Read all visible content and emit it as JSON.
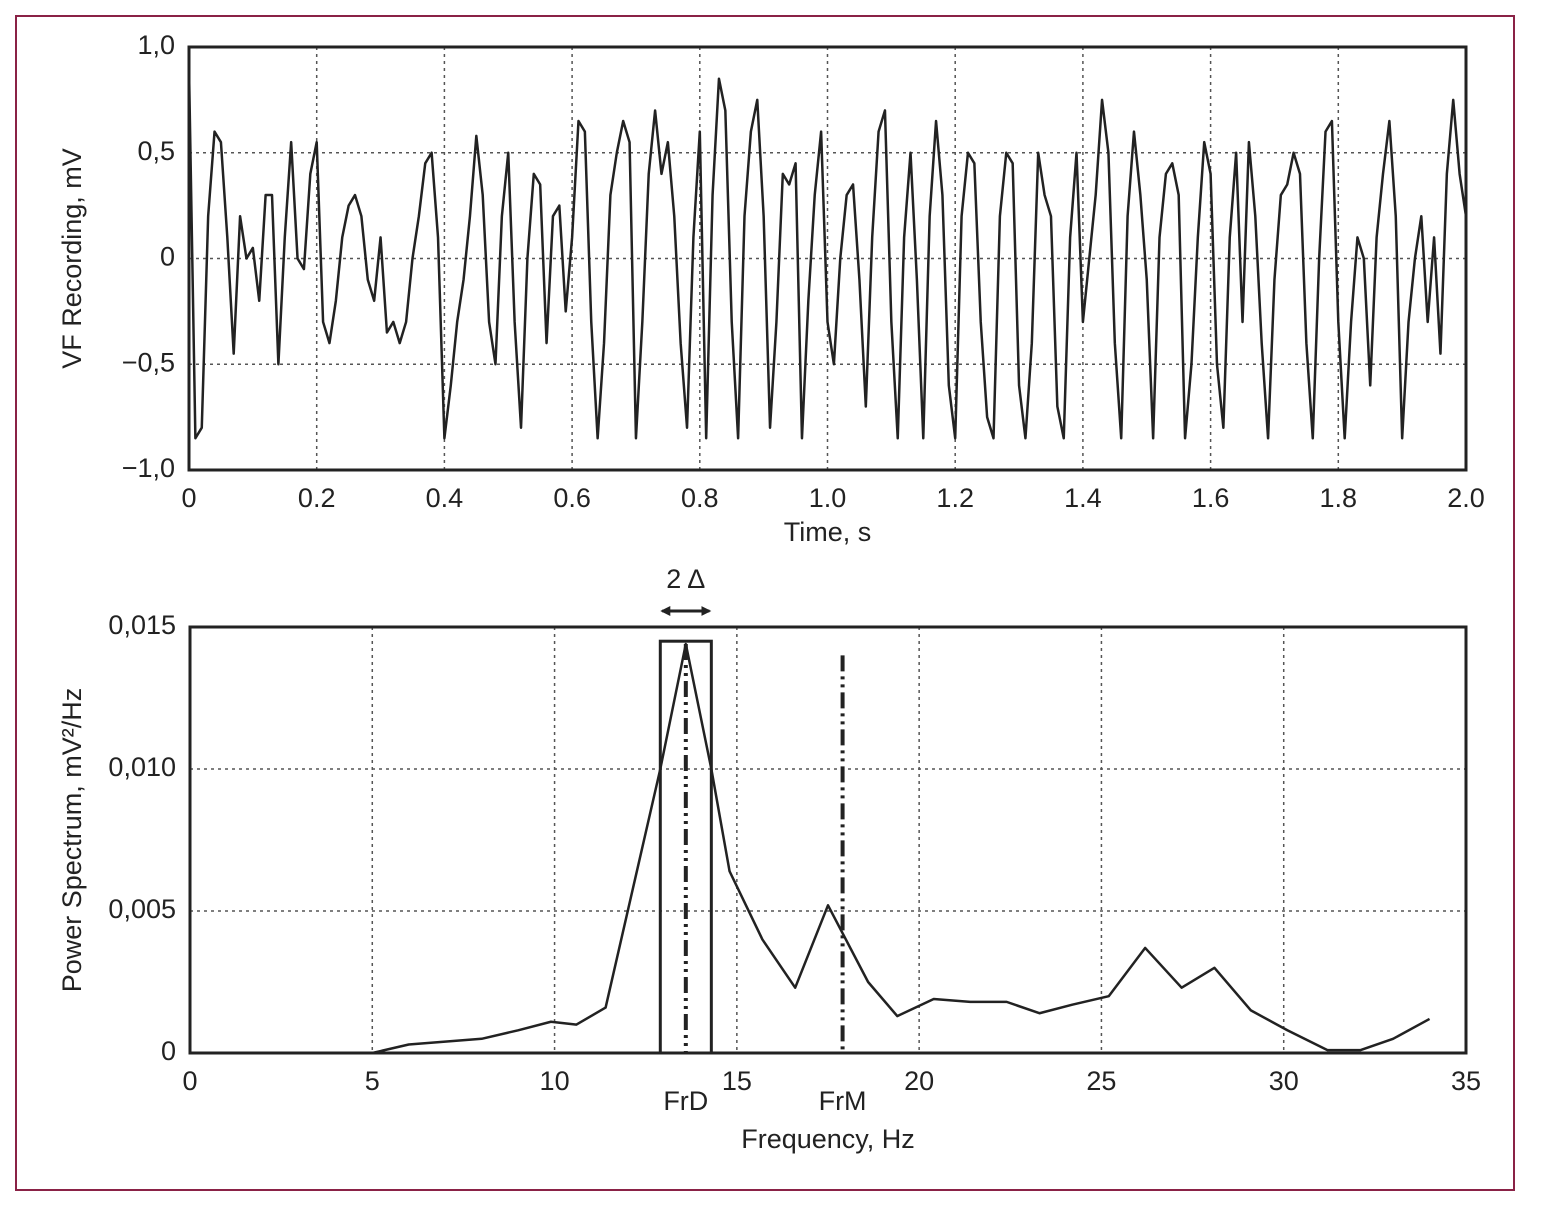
{
  "chart_data": [
    {
      "type": "line",
      "ylabel": "VF Recording, mV",
      "xlabel": "Time, s",
      "color": "#222222",
      "grid": true,
      "xlim": [
        0,
        2
      ],
      "ylim": [
        -1,
        1
      ],
      "xticks": [
        0,
        0.2,
        0.4,
        0.6,
        0.8,
        {
          "value": 1,
          "label": "1.0"
        },
        1.2,
        1.4,
        1.6,
        1.8,
        {
          "value": 2,
          "label": "2.0"
        }
      ],
      "yticks": [
        {
          "value": -1,
          "label": "−1,0"
        },
        {
          "value": -0.5,
          "label": "−0,5"
        },
        0,
        {
          "value": 0.5,
          "label": "0,5"
        },
        {
          "value": 1,
          "label": "1,0"
        }
      ],
      "x": [
        0,
        0.01,
        0.02,
        0.03,
        0.04,
        0.05,
        0.06,
        0.07,
        0.08,
        0.09,
        0.1,
        0.11,
        0.12,
        0.13,
        0.14,
        0.15,
        0.16,
        0.17,
        0.18,
        0.19,
        0.2,
        0.21,
        0.22,
        0.23,
        0.24,
        0.25,
        0.26,
        0.27,
        0.28,
        0.29,
        0.3,
        0.31,
        0.32,
        0.33,
        0.34,
        0.35,
        0.36,
        0.37,
        0.38,
        0.39,
        0.4,
        0.41,
        0.42,
        0.43,
        0.44,
        0.45,
        0.46,
        0.47,
        0.48,
        0.49,
        0.5,
        0.51,
        0.52,
        0.53,
        0.54,
        0.55,
        0.56,
        0.57,
        0.58,
        0.59,
        0.6,
        0.61,
        0.62,
        0.63,
        0.64,
        0.65,
        0.66,
        0.67,
        0.68,
        0.69,
        0.7,
        0.71,
        0.72,
        0.73,
        0.74,
        0.75,
        0.76,
        0.77,
        0.78,
        0.79,
        0.8,
        0.81,
        0.82,
        0.83,
        0.84,
        0.85,
        0.86,
        0.87,
        0.88,
        0.89,
        0.9,
        0.91,
        0.92,
        0.93,
        0.94,
        0.95,
        0.96,
        0.97,
        0.98,
        0.99,
        1.0,
        1.01,
        1.02,
        1.03,
        1.04,
        1.05,
        1.06,
        1.07,
        1.08,
        1.09,
        1.1,
        1.11,
        1.12,
        1.13,
        1.14,
        1.15,
        1.16,
        1.17,
        1.18,
        1.19,
        1.2,
        1.21,
        1.22,
        1.23,
        1.24,
        1.25,
        1.26,
        1.27,
        1.28,
        1.29,
        1.3,
        1.31,
        1.32,
        1.33,
        1.34,
        1.35,
        1.36,
        1.37,
        1.38,
        1.39,
        1.4,
        1.41,
        1.42,
        1.43,
        1.44,
        1.45,
        1.46,
        1.47,
        1.48,
        1.49,
        1.5,
        1.51,
        1.52,
        1.53,
        1.54,
        1.55,
        1.56,
        1.57,
        1.58,
        1.59,
        1.6,
        1.61,
        1.62,
        1.63,
        1.64,
        1.65,
        1.66,
        1.67,
        1.68,
        1.69,
        1.7,
        1.71,
        1.72,
        1.73,
        1.74,
        1.75,
        1.76,
        1.77,
        1.78,
        1.79,
        1.8,
        1.81,
        1.82,
        1.83,
        1.84,
        1.85,
        1.86,
        1.87,
        1.88,
        1.89,
        1.9,
        1.91,
        1.92,
        1.93,
        1.94,
        1.95,
        1.96,
        1.97,
        1.98,
        1.99,
        2.0
      ],
      "values": [
        0.9,
        -0.85,
        -0.8,
        0.2,
        0.6,
        0.55,
        0.1,
        -0.45,
        0.2,
        0.0,
        0.05,
        -0.2,
        0.3,
        0.3,
        -0.5,
        0.1,
        0.55,
        0.0,
        -0.05,
        0.4,
        0.55,
        -0.3,
        -0.4,
        -0.2,
        0.1,
        0.25,
        0.3,
        0.2,
        -0.1,
        -0.2,
        0.1,
        -0.35,
        -0.3,
        -0.4,
        -0.3,
        0.0,
        0.2,
        0.45,
        0.5,
        0.1,
        -0.85,
        -0.6,
        -0.3,
        -0.1,
        0.2,
        0.58,
        0.3,
        -0.3,
        -0.5,
        0.2,
        0.5,
        -0.3,
        -0.8,
        0.0,
        0.4,
        0.35,
        -0.4,
        0.2,
        0.25,
        -0.25,
        0.1,
        0.65,
        0.6,
        -0.3,
        -0.85,
        -0.4,
        0.3,
        0.5,
        0.65,
        0.55,
        -0.85,
        -0.3,
        0.4,
        0.7,
        0.4,
        0.55,
        0.2,
        -0.4,
        -0.8,
        0.1,
        0.6,
        -0.85,
        0.3,
        0.85,
        0.7,
        -0.3,
        -0.85,
        0.2,
        0.6,
        0.75,
        0.2,
        -0.8,
        -0.3,
        0.4,
        0.35,
        0.45,
        -0.85,
        -0.2,
        0.3,
        0.6,
        -0.3,
        -0.5,
        0.0,
        0.3,
        0.35,
        -0.1,
        -0.7,
        0.1,
        0.6,
        0.7,
        -0.3,
        -0.85,
        0.1,
        0.5,
        -0.1,
        -0.85,
        0.2,
        0.65,
        0.3,
        -0.6,
        -0.85,
        0.2,
        0.5,
        0.45,
        -0.3,
        -0.75,
        -0.85,
        0.2,
        0.5,
        0.45,
        -0.6,
        -0.85,
        -0.4,
        0.5,
        0.3,
        0.2,
        -0.7,
        -0.85,
        0.1,
        0.5,
        -0.3,
        0.0,
        0.3,
        0.75,
        0.5,
        -0.4,
        -0.85,
        0.2,
        0.6,
        0.3,
        -0.1,
        -0.85,
        0.1,
        0.4,
        0.45,
        0.3,
        -0.85,
        -0.5,
        0.1,
        0.55,
        0.4,
        -0.5,
        -0.8,
        0.1,
        0.5,
        -0.3,
        0.55,
        0.2,
        -0.4,
        -0.85,
        -0.1,
        0.3,
        0.35,
        0.5,
        0.4,
        -0.4,
        -0.85,
        0.0,
        0.6,
        0.65,
        -0.3,
        -0.85,
        -0.3,
        0.1,
        0.0,
        -0.6,
        0.1,
        0.4,
        0.65,
        0.2,
        -0.85,
        -0.3,
        0.0,
        0.2,
        -0.3,
        0.1,
        -0.45,
        0.4,
        0.75,
        0.4,
        0.2
      ]
    },
    {
      "type": "line",
      "ylabel": "Power Spectrum, mV²/Hz",
      "xlabel": "Frequency, Hz",
      "color": "#222222",
      "grid": true,
      "xlim": [
        0,
        35
      ],
      "ylim": [
        0,
        0.015
      ],
      "xticks": [
        0,
        5,
        10,
        15,
        20,
        25,
        30,
        35
      ],
      "yticks": [
        0,
        {
          "value": 0.005,
          "label": "0,005"
        },
        {
          "value": 0.01,
          "label": "0,010"
        },
        {
          "value": 0.015,
          "label": "0,015"
        }
      ],
      "x": [
        0,
        5,
        6,
        7,
        8,
        9,
        9.9,
        10.6,
        11.4,
        12.9,
        13.6,
        14.3,
        14.8,
        15.7,
        16.6,
        17.5,
        18.6,
        19.4,
        20.4,
        21.4,
        22.4,
        23.3,
        24.2,
        25.2,
        26.2,
        27.2,
        28.1,
        29.1,
        30.1,
        31.2,
        32.1,
        33.0,
        34.0
      ],
      "values": [
        0,
        0,
        0.0003,
        0.0004,
        0.0005,
        0.0008,
        0.0011,
        0.001,
        0.0016,
        0.01,
        0.0144,
        0.01,
        0.0064,
        0.004,
        0.0023,
        0.0052,
        0.0025,
        0.0013,
        0.0019,
        0.0018,
        0.0018,
        0.0014,
        0.0017,
        0.002,
        0.0037,
        0.0023,
        0.003,
        0.0015,
        0.0008,
        0.0001,
        0.0001,
        0.0005,
        0.0012
      ],
      "window": {
        "label": "2 Δ",
        "x": [
          12.9,
          14.3
        ],
        "top": 0.0145
      },
      "markers": [
        {
          "label": "FrD",
          "x": 13.6,
          "top": 0.0144
        },
        {
          "label": "FrM",
          "x": 17.9,
          "top": 0.014
        }
      ]
    }
  ]
}
